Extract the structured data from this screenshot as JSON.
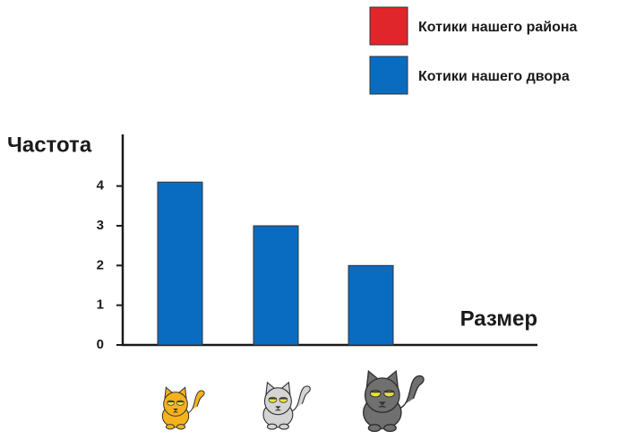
{
  "chart_data": {
    "type": "bar",
    "x_label": "Размер",
    "y_label": "Частота",
    "categories": [
      null,
      null,
      null
    ],
    "series": [
      {
        "name": "Котики нашего района",
        "color": "#e0262b",
        "values": [
          null,
          null,
          null
        ]
      },
      {
        "name": "Котики нашего двора",
        "color": "#0a6cc0",
        "values": [
          4.1,
          3,
          2
        ]
      }
    ],
    "ylim": [
      0,
      5.3
    ],
    "yticks": [
      0,
      1,
      2,
      3,
      4
    ]
  }
}
